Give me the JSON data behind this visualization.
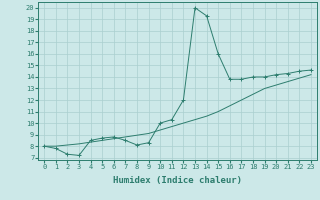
{
  "line1_x": [
    0,
    1,
    2,
    3,
    4,
    5,
    6,
    7,
    8,
    9,
    10,
    11,
    12,
    13,
    14,
    15,
    16,
    17,
    18,
    19,
    20,
    21,
    22,
    23
  ],
  "line1_y": [
    8,
    7.8,
    7.3,
    7.2,
    8.5,
    8.7,
    8.8,
    8.5,
    8.1,
    8.3,
    10.0,
    10.3,
    12.0,
    20.0,
    19.3,
    16.0,
    13.8,
    13.8,
    14.0,
    14.0,
    14.2,
    14.3,
    14.5,
    14.6
  ],
  "line2_x": [
    0,
    1,
    2,
    3,
    4,
    5,
    6,
    7,
    8,
    9,
    10,
    11,
    12,
    13,
    14,
    15,
    16,
    17,
    18,
    19,
    20,
    21,
    22,
    23
  ],
  "line2_y": [
    8,
    8.0,
    8.1,
    8.2,
    8.35,
    8.5,
    8.65,
    8.8,
    8.95,
    9.1,
    9.4,
    9.7,
    10.0,
    10.3,
    10.6,
    11.0,
    11.5,
    12.0,
    12.5,
    13.0,
    13.3,
    13.6,
    13.9,
    14.2
  ],
  "line_color": "#2d7d6e",
  "bg_color": "#cce8e8",
  "grid_color": "#aacfcf",
  "xlabel": "Humidex (Indice chaleur)",
  "xlabel_fontsize": 6.5,
  "yticks": [
    7,
    8,
    9,
    10,
    11,
    12,
    13,
    14,
    15,
    16,
    17,
    18,
    19,
    20
  ],
  "xticks": [
    0,
    1,
    2,
    3,
    4,
    5,
    6,
    7,
    8,
    9,
    10,
    11,
    12,
    13,
    14,
    15,
    16,
    17,
    18,
    19,
    20,
    21,
    22,
    23
  ],
  "ylim": [
    6.8,
    20.5
  ],
  "xlim": [
    -0.5,
    23.5
  ]
}
